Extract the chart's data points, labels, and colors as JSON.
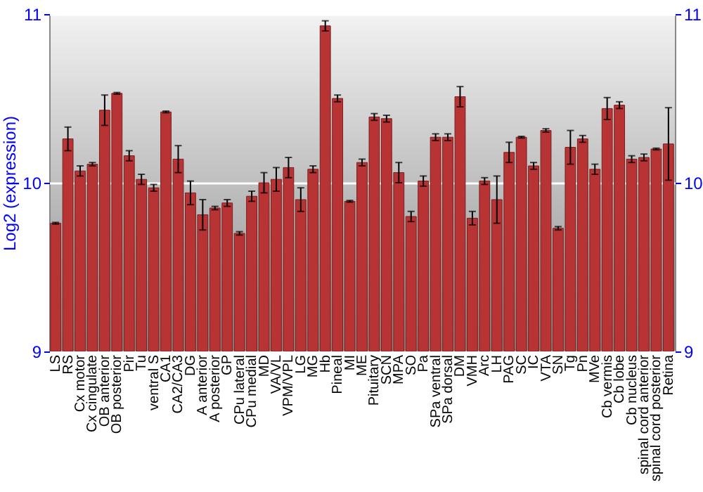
{
  "chart_data": {
    "type": "bar",
    "ylabel": "Log2 (expression)",
    "categories": [
      "LS",
      "RS",
      "Cx motor",
      "Cx cingulate",
      "OB anterior",
      "OB posterior",
      "Pir",
      "Tu",
      "ventral S",
      "CA1",
      "CA2/CA3",
      "DG",
      "A anterior",
      "A posterior",
      "GP",
      "CPu lateral",
      "CPu medial",
      "MD",
      "VA/VL",
      "VPM/VPL",
      "LG",
      "MG",
      "Hb",
      "Pineal",
      "MI",
      "ME",
      "Pituitary",
      "SCN",
      "MPA",
      "SO",
      "Pa",
      "SPa ventral",
      "SPa dorsal",
      "DM",
      "VMH",
      "Arc",
      "LH",
      "PAG",
      "SC",
      "IC",
      "VTA",
      "SN",
      "Tg",
      "Pn",
      "MVe",
      "Cb vermis",
      "Cb lobe",
      "Cb nucleus",
      "spinal cord anterior",
      "spinal cord posterior",
      "Retina"
    ],
    "values": [
      9.76,
      10.26,
      10.07,
      10.11,
      10.43,
      10.53,
      10.16,
      10.02,
      9.97,
      10.42,
      10.14,
      9.94,
      9.81,
      9.85,
      9.88,
      9.7,
      9.92,
      10,
      10.02,
      10.09,
      9.9,
      10.08,
      10.93,
      10.5,
      9.89,
      10.12,
      10.39,
      10.38,
      10.06,
      9.8,
      10.01,
      10.27,
      10.27,
      10.51,
      9.79,
      10.01,
      9.9,
      10.18,
      10.27,
      10.1,
      10.31,
      9.73,
      10.21,
      10.26,
      10.08,
      10.44,
      10.46,
      10.14,
      10.15,
      10.2,
      10.23
    ],
    "errors": [
      0.005,
      0.07,
      0.03,
      0.01,
      0.09,
      0.005,
      0.03,
      0.03,
      0.02,
      0.005,
      0.08,
      0.07,
      0.09,
      0.01,
      0.02,
      0.01,
      0.03,
      0.06,
      0.07,
      0.06,
      0.07,
      0.02,
      0.03,
      0.02,
      0.005,
      0.02,
      0.02,
      0.02,
      0.06,
      0.03,
      0.03,
      0.02,
      0.02,
      0.06,
      0.04,
      0.02,
      0.14,
      0.06,
      0.005,
      0.02,
      0.01,
      0.01,
      0.1,
      0.02,
      0.03,
      0.065,
      0.02,
      0.02,
      0.02,
      0.005,
      0.215
    ],
    "color": "#b83434",
    "ylim": [
      9,
      11
    ],
    "yticks": [
      9,
      10,
      11
    ],
    "y2lim": [
      9,
      11
    ],
    "y2ticks": [
      9,
      10,
      11
    ],
    "grid": "y"
  }
}
